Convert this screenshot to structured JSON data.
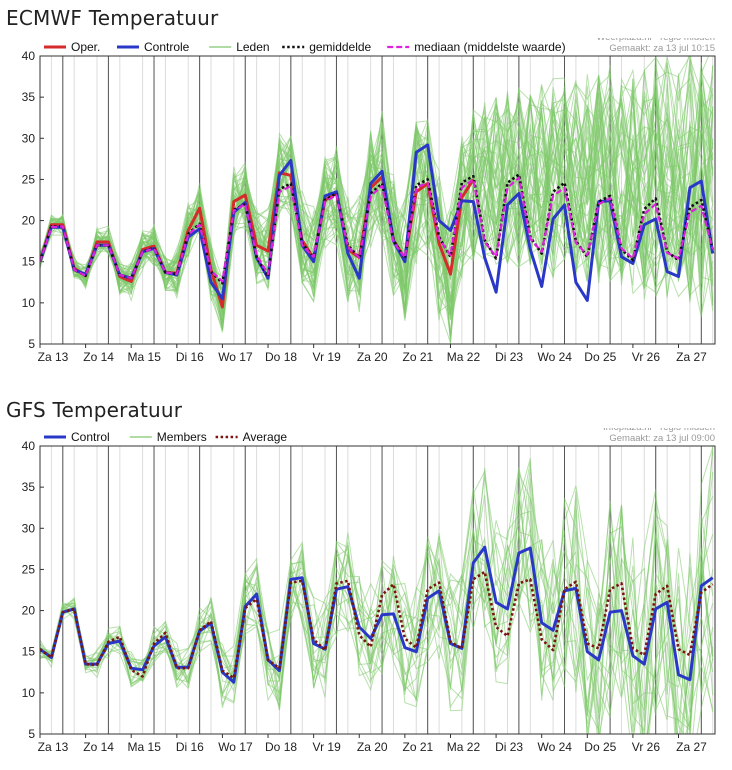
{
  "chart_data": [
    {
      "type": "line",
      "title": "ECMWF Temperatuur",
      "source": "Weerplaza.nl - regio midden",
      "made": "Gemaakt: za 13 jul 10:15",
      "ylim": [
        5,
        40
      ],
      "yticks": [
        5,
        10,
        15,
        20,
        25,
        30,
        35,
        40
      ],
      "xlim": [
        0,
        14.8
      ],
      "days": [
        "Za 13",
        "Zo 14",
        "Ma 15",
        "Di 16",
        "Wo 17",
        "Do 18",
        "Vr 19",
        "Za 20",
        "Zo 21",
        "Ma 22",
        "Di 23",
        "Wo 24",
        "Do 25",
        "Vr 26",
        "Za 27"
      ],
      "grid": true,
      "legend": "top",
      "ensemble_members": 50,
      "series": [
        {
          "name": "Oper.",
          "color": "#d62b2b",
          "style": "solid",
          "x": [
            0,
            0.25,
            0.5,
            0.75,
            1,
            1.25,
            1.5,
            1.75,
            2,
            2.25,
            2.5,
            2.75,
            3,
            3.25,
            3.5,
            3.75,
            4,
            4.25,
            4.5,
            4.75,
            5,
            5.25,
            5.5,
            5.75,
            6,
            6.25,
            6.5,
            6.75,
            7,
            7.25,
            7.5,
            7.75,
            8,
            8.25,
            8.5,
            8.75,
            9,
            9.25,
            9.5
          ],
          "values": [
            15,
            19.5,
            19.5,
            14.2,
            13.3,
            17.4,
            17.4,
            13.2,
            12.6,
            16.5,
            16.9,
            13.7,
            13.6,
            18.8,
            21.5,
            14,
            9.5,
            22.3,
            23.1,
            17,
            16.3,
            25.8,
            25.5,
            17.6,
            15.4,
            22.5,
            23.3,
            16.5,
            15.5,
            24,
            25.3,
            17.6,
            15.4,
            23.5,
            24.5,
            17.2,
            13.5,
            22.8,
            25
          ]
        },
        {
          "name": "Controle",
          "color": "#2a38c8",
          "style": "solid",
          "x": [
            0,
            0.25,
            0.5,
            0.75,
            1,
            1.25,
            1.5,
            1.75,
            2,
            2.25,
            2.5,
            2.75,
            3,
            3.25,
            3.5,
            3.75,
            4,
            4.25,
            4.5,
            4.75,
            5,
            5.25,
            5.5,
            5.75,
            6,
            6.25,
            6.5,
            6.75,
            7,
            7.25,
            7.5,
            7.75,
            8,
            8.25,
            8.5,
            8.75,
            9,
            9.25,
            9.5,
            9.75,
            10,
            10.25,
            10.5,
            10.75,
            11,
            11.25,
            11.5,
            11.75,
            12,
            12.25,
            12.5,
            12.75,
            13,
            13.25,
            13.5,
            13.75,
            14,
            14.25,
            14.5,
            14.75
          ],
          "values": [
            15,
            19.2,
            19.2,
            14,
            13.5,
            17,
            17,
            13.4,
            13,
            16.2,
            16.6,
            13.7,
            13.4,
            18,
            19,
            12.5,
            10.5,
            21,
            22.2,
            15.5,
            13,
            25.5,
            27.3,
            17,
            15,
            23,
            23.5,
            16,
            13,
            24.5,
            26,
            17.5,
            15,
            28.3,
            29.2,
            20,
            18.8,
            22.4,
            22.3,
            15.5,
            11.3,
            21.9,
            23.3,
            16.5,
            12,
            20.2,
            21.9,
            12.5,
            10.3,
            22.3,
            22.4,
            15.6,
            14.8,
            19.5,
            20.2,
            13.8,
            13.2,
            24,
            24.8,
            16
          ]
        },
        {
          "name": "Leden",
          "color": "#7ec86a",
          "style": "thin"
        },
        {
          "name": "gemiddelde",
          "color": "#111111",
          "style": "dotted",
          "x": [
            0,
            0.25,
            0.5,
            0.75,
            1,
            1.25,
            1.5,
            1.75,
            2,
            2.25,
            2.5,
            2.75,
            3,
            3.25,
            3.5,
            3.75,
            4,
            4.25,
            4.5,
            4.75,
            5,
            5.25,
            5.5,
            5.75,
            6,
            6.25,
            6.5,
            6.75,
            7,
            7.25,
            7.5,
            7.75,
            8,
            8.25,
            8.5,
            8.75,
            9,
            9.25,
            9.5,
            9.75,
            10,
            10.25,
            10.5,
            10.75,
            11,
            11.25,
            11.5,
            11.75,
            12,
            12.25,
            12.5,
            12.75,
            13,
            13.25,
            13.5,
            13.75,
            14,
            14.25,
            14.5,
            14.75
          ],
          "values": [
            15,
            19.3,
            19.3,
            14,
            13.3,
            17,
            17,
            13.4,
            13,
            16.2,
            16.7,
            13.7,
            13.5,
            18.4,
            19.6,
            13.8,
            12.4,
            21.3,
            22,
            15.6,
            13.2,
            23.8,
            24.5,
            17.2,
            15.6,
            22.5,
            23.3,
            17,
            15.5,
            23.3,
            24.5,
            17.6,
            15.4,
            24.3,
            25,
            18,
            15.6,
            24.6,
            25.4,
            17.6,
            15.4,
            24.6,
            25.6,
            18,
            16,
            23.5,
            24.6,
            17.5,
            15.6,
            22.3,
            23,
            16.5,
            15.2,
            21.4,
            22.7,
            16.2,
            15.2,
            21.6,
            22.5,
            16.5
          ]
        },
        {
          "name": "mediaan (middelste waarde)",
          "color": "#e020e0",
          "style": "dashed",
          "x": [
            0,
            0.25,
            0.5,
            0.75,
            1,
            1.25,
            1.5,
            1.75,
            2,
            2.25,
            2.5,
            2.75,
            3,
            3.25,
            3.5,
            3.75,
            4,
            4.25,
            4.5,
            4.75,
            5,
            5.25,
            5.5,
            5.75,
            6,
            6.25,
            6.5,
            6.75,
            7,
            7.25,
            7.5,
            7.75,
            8,
            8.25,
            8.5,
            8.75,
            9,
            9.25,
            9.5,
            9.75,
            10,
            10.25,
            10.5,
            10.75,
            11,
            11.25,
            11.5,
            11.75,
            12,
            12.25,
            12.5,
            12.75,
            13,
            13.25,
            13.5,
            13.75,
            14,
            14.25,
            14.5,
            14.75
          ],
          "values": [
            15,
            19.2,
            19.3,
            14,
            13.3,
            17,
            17,
            13.4,
            13,
            16.2,
            16.6,
            13.7,
            13.5,
            18.3,
            19.5,
            13.9,
            12.6,
            21.2,
            22,
            15.8,
            13.5,
            23.5,
            24.2,
            17,
            15.6,
            22.3,
            23.1,
            16.8,
            15.5,
            23,
            24.2,
            17.4,
            15.5,
            24,
            24.6,
            17.8,
            15.8,
            24,
            25,
            17.4,
            15.6,
            24,
            25.2,
            17.8,
            16.2,
            23,
            24,
            17.3,
            15.8,
            22,
            22.7,
            16.6,
            15.4,
            20.8,
            22,
            16.1,
            15.4,
            21,
            21.8,
            16.5
          ]
        }
      ]
    },
    {
      "type": "line",
      "title": "GFS Temperatuur",
      "source": "Infoplaza.nl - regio midden",
      "made": "Gemaakt: za 13 jul 09:00",
      "ylim": [
        5,
        40
      ],
      "yticks": [
        5,
        10,
        15,
        20,
        25,
        30,
        35,
        40
      ],
      "xlim": [
        0,
        14.8
      ],
      "days": [
        "Za 13",
        "Zo 14",
        "Ma 15",
        "Di 16",
        "Wo 17",
        "Do 18",
        "Vr 19",
        "Za 20",
        "Zo 21",
        "Ma 22",
        "Di 23",
        "Wo 24",
        "Do 25",
        "Vr 26",
        "Za 27"
      ],
      "grid": true,
      "legend": "top",
      "ensemble_members": 20,
      "series": [
        {
          "name": "Control",
          "color": "#2a38c8",
          "style": "solid",
          "x": [
            0,
            0.25,
            0.5,
            0.75,
            1,
            1.25,
            1.5,
            1.75,
            2,
            2.25,
            2.5,
            2.75,
            3,
            3.25,
            3.5,
            3.75,
            4,
            4.25,
            4.5,
            4.75,
            5,
            5.25,
            5.5,
            5.75,
            6,
            6.25,
            6.5,
            6.75,
            7,
            7.25,
            7.5,
            7.75,
            8,
            8.25,
            8.5,
            8.75,
            9,
            9.25,
            9.5,
            9.75,
            10,
            10.25,
            10.5,
            10.75,
            11,
            11.25,
            11.5,
            11.75,
            12,
            12.25,
            12.5,
            12.75,
            13,
            13.25,
            13.5,
            13.75,
            14,
            14.25,
            14.5,
            14.75
          ],
          "values": [
            15.3,
            14.3,
            19.8,
            20.2,
            13.5,
            13.5,
            16,
            16.3,
            13,
            12.8,
            15.7,
            16.8,
            13.1,
            13.1,
            17.5,
            18.5,
            12.5,
            11.3,
            20.5,
            22,
            14,
            12.7,
            23.8,
            24,
            16,
            15.3,
            22.6,
            22.9,
            18,
            16.6,
            19.5,
            19.6,
            15.5,
            15,
            21.5,
            22.4,
            16,
            15.4,
            25.8,
            27.7,
            21,
            20.2,
            27,
            27.6,
            18.5,
            17.6,
            22.4,
            22.7,
            15,
            14,
            19.8,
            20,
            14.5,
            13.5,
            20.2,
            21,
            12.2,
            11.6,
            23,
            24
          ]
        },
        {
          "name": "Members",
          "color": "#7ec86a",
          "style": "thin"
        },
        {
          "name": "Average",
          "color": "#7a1410",
          "style": "dotted",
          "x": [
            0,
            0.25,
            0.5,
            0.75,
            1,
            1.25,
            1.5,
            1.75,
            2,
            2.25,
            2.5,
            2.75,
            3,
            3.25,
            3.5,
            3.75,
            4,
            4.25,
            4.5,
            4.75,
            5,
            5.25,
            5.5,
            5.75,
            6,
            6.25,
            6.5,
            6.75,
            7,
            7.25,
            7.5,
            7.75,
            8,
            8.25,
            8.5,
            8.75,
            9,
            9.25,
            9.5,
            9.75,
            10,
            10.25,
            10.5,
            10.75,
            11,
            11.25,
            11.5,
            11.75,
            12,
            12.25,
            12.5,
            12.75,
            13,
            13.25,
            13.5,
            13.75,
            14,
            14.25,
            14.5,
            14.75
          ],
          "values": [
            15.3,
            14.3,
            19.8,
            20.2,
            13.5,
            13.4,
            16.2,
            16.8,
            12.8,
            12,
            16,
            17.3,
            13,
            13,
            17.6,
            18.7,
            12.7,
            11.8,
            20.3,
            21.4,
            14,
            13,
            23.4,
            23.6,
            16.5,
            15.2,
            23.3,
            23.6,
            17,
            15.6,
            21.9,
            23.2,
            16.6,
            15.5,
            22.6,
            23.4,
            16.2,
            15.4,
            23.8,
            24.7,
            18,
            16.9,
            23.3,
            23.8,
            16.5,
            15.2,
            22.6,
            23.5,
            16,
            15.4,
            22.6,
            23.3,
            15.4,
            14.6,
            22,
            23,
            15.3,
            14.6,
            22.2,
            23.2
          ]
        }
      ]
    }
  ]
}
